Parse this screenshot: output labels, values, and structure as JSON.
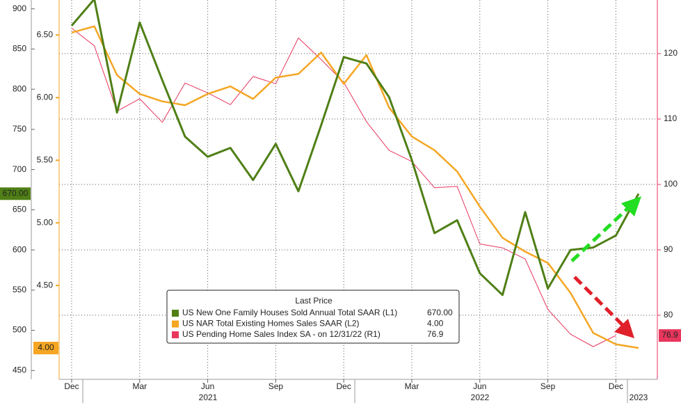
{
  "chart_data": {
    "type": "line",
    "categories": [
      "Dec",
      null,
      null,
      "Mar",
      null,
      null,
      "Jun",
      null,
      null,
      "Sep",
      null,
      null,
      "Dec",
      null,
      null,
      "Mar",
      null,
      null,
      "Jun",
      null,
      null,
      "Sep",
      null,
      null,
      "Dec",
      null
    ],
    "years": [
      "2021",
      "2022",
      "2023"
    ],
    "legend_title": "Last Price",
    "series": [
      {
        "name": "US New One Family Houses Sold Annual Total SAAR (L1)",
        "color": "#4f7f16",
        "axis": "y",
        "last_label": "670.00",
        "values": [
          879,
          912,
          771,
          883,
          811,
          741,
          716,
          727,
          687,
          732,
          673,
          755,
          840,
          832,
          790,
          712,
          621,
          637,
          571,
          544,
          647,
          552,
          600,
          603,
          618,
          670
        ]
      },
      {
        "name": "US NAR Total Existing Homes Sales SAAR (L2)",
        "color": "#f5a623",
        "axis": "y2",
        "last_label": "4.00",
        "values": [
          6.52,
          6.57,
          6.18,
          6.03,
          5.97,
          5.94,
          6.03,
          6.09,
          5.99,
          6.16,
          6.19,
          6.36,
          6.11,
          6.34,
          5.92,
          5.69,
          5.58,
          5.41,
          5.13,
          4.88,
          4.77,
          4.68,
          4.44,
          4.12,
          4.03,
          4.0
        ]
      },
      {
        "name": "US Pending Home Sales Index SA - on 12/31/22 (R1)",
        "color": "#e8365d",
        "axis": "y3",
        "last_label": "76.9",
        "values": [
          123.9,
          121.2,
          111.2,
          113.1,
          109.5,
          115.5,
          114.0,
          112.2,
          116.5,
          115.4,
          122.4,
          119.1,
          115.6,
          109.6,
          105.2,
          103.5,
          99.5,
          99.7,
          90.9,
          90.3,
          88.6,
          80.9,
          77.1,
          75.2,
          76.9,
          null
        ]
      }
    ],
    "ylim": [
      439,
      911
    ],
    "yticks": [
      450,
      500,
      550,
      600,
      650,
      700,
      750,
      800,
      850,
      900
    ],
    "y2lim": [
      3.75,
      6.78
    ],
    "y2ticks": [
      {
        "value": 4.0,
        "label": "4.00"
      },
      {
        "value": 4.5,
        "label": "4.50"
      },
      {
        "value": 5.0,
        "label": "5.00"
      },
      {
        "value": 5.5,
        "label": "5.50"
      },
      {
        "value": 6.0,
        "label": "6.00"
      },
      {
        "value": 6.5,
        "label": "6.50"
      }
    ],
    "y3lim": [
      70.2,
      128.2
    ],
    "y3ticks": [
      80,
      90,
      100,
      110,
      120
    ],
    "grid": true
  }
}
